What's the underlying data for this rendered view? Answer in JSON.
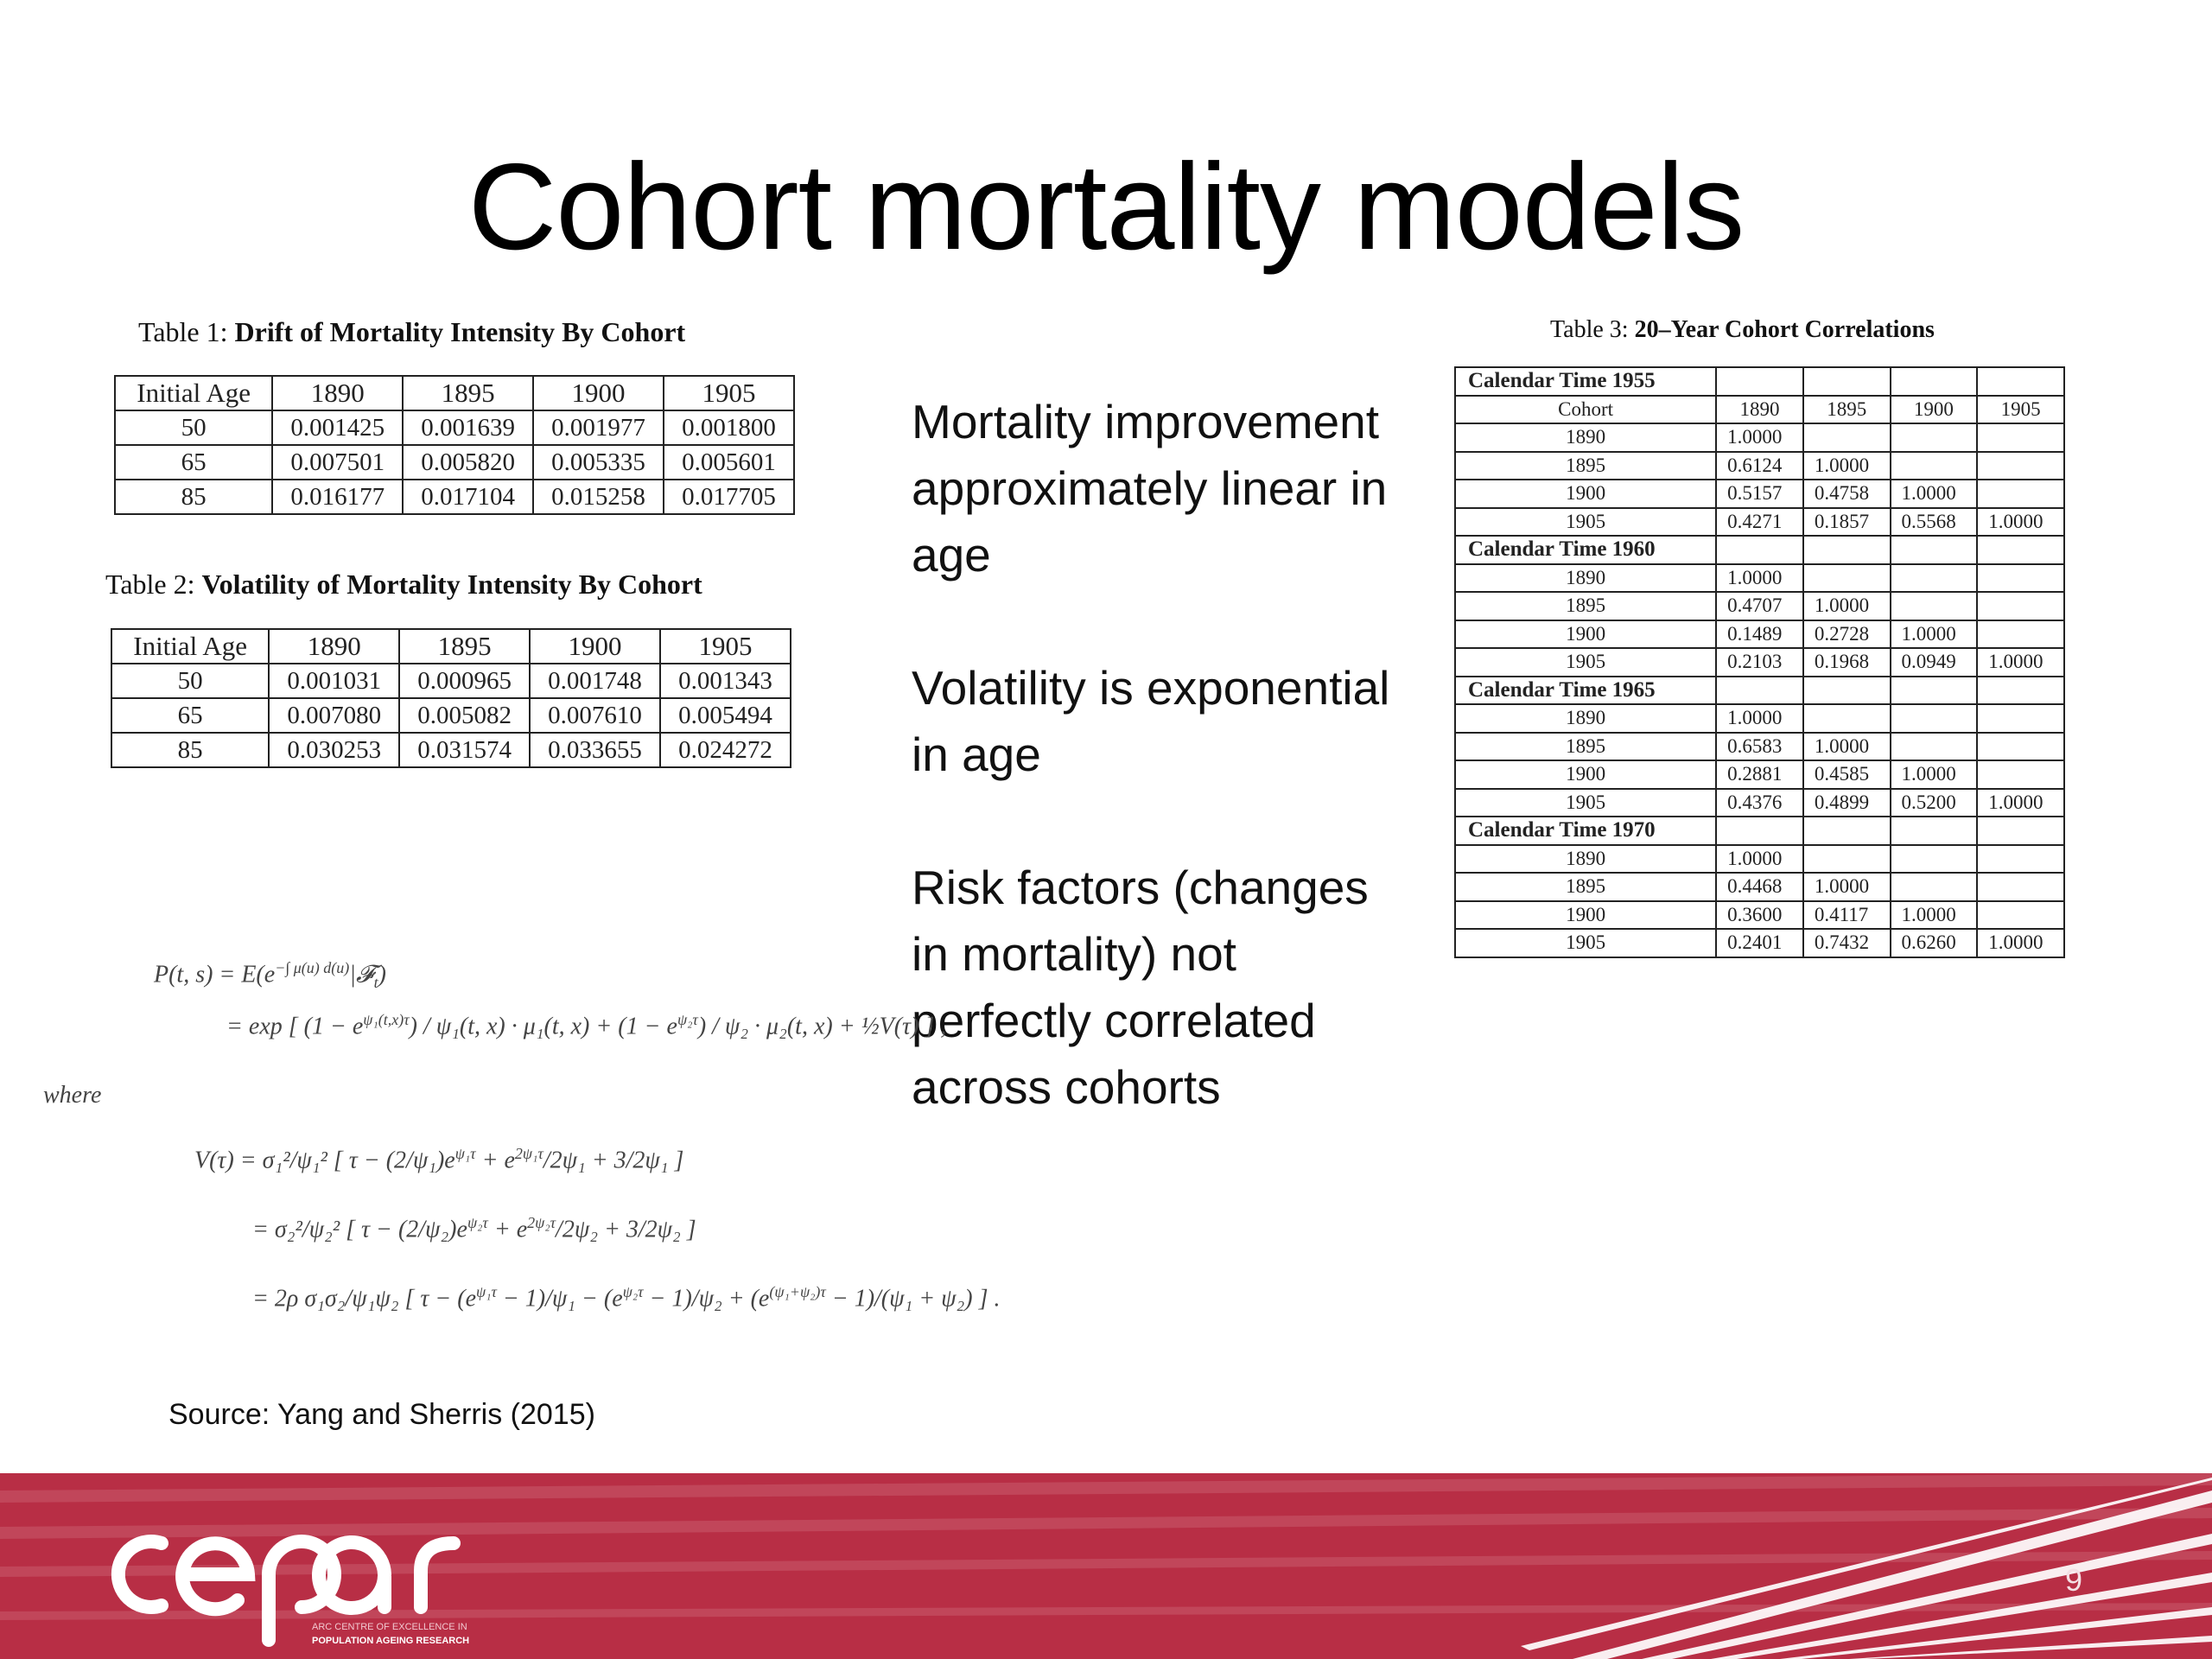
{
  "title": "Cohort mortality models",
  "table1": {
    "label": "Table 1:",
    "caption": "Drift of Mortality Intensity By Cohort",
    "header": [
      "Initial Age",
      "1890",
      "1895",
      "1900",
      "1905"
    ],
    "rows": [
      [
        "50",
        "0.001425",
        "0.001639",
        "0.001977",
        "0.001800"
      ],
      [
        "65",
        "0.007501",
        "0.005820",
        "0.005335",
        "0.005601"
      ],
      [
        "85",
        "0.016177",
        "0.017104",
        "0.015258",
        "0.017705"
      ]
    ]
  },
  "table2": {
    "label": "Table 2:",
    "caption": "Volatility of Mortality Intensity By Cohort",
    "header": [
      "Initial Age",
      "1890",
      "1895",
      "1900",
      "1905"
    ],
    "rows": [
      [
        "50",
        "0.001031",
        "0.000965",
        "0.001748",
        "0.001343"
      ],
      [
        "65",
        "0.007080",
        "0.005082",
        "0.007610",
        "0.005494"
      ],
      [
        "85",
        "0.030253",
        "0.031574",
        "0.033655",
        "0.024272"
      ]
    ]
  },
  "table3": {
    "label": "Table 3:",
    "caption": "20–Year Cohort Correlations",
    "header": [
      "Cohort",
      "1890",
      "1895",
      "1900",
      "1905"
    ],
    "blocks": [
      {
        "title": "Calendar Time 1955",
        "rows": [
          [
            "1890",
            "1.0000",
            "",
            "",
            ""
          ],
          [
            "1895",
            "0.6124",
            "1.0000",
            "",
            ""
          ],
          [
            "1900",
            "0.5157",
            "0.4758",
            "1.0000",
            ""
          ],
          [
            "1905",
            "0.4271",
            "0.1857",
            "0.5568",
            "1.0000"
          ]
        ]
      },
      {
        "title": "Calendar Time 1960",
        "rows": [
          [
            "1890",
            "1.0000",
            "",
            "",
            ""
          ],
          [
            "1895",
            "0.4707",
            "1.0000",
            "",
            ""
          ],
          [
            "1900",
            "0.1489",
            "0.2728",
            "1.0000",
            ""
          ],
          [
            "1905",
            "0.2103",
            "0.1968",
            "0.0949",
            "1.0000"
          ]
        ]
      },
      {
        "title": "Calendar Time 1965",
        "rows": [
          [
            "1890",
            "1.0000",
            "",
            "",
            ""
          ],
          [
            "1895",
            "0.6583",
            "1.0000",
            "",
            ""
          ],
          [
            "1900",
            "0.2881",
            "0.4585",
            "1.0000",
            ""
          ],
          [
            "1905",
            "0.4376",
            "0.4899",
            "0.5200",
            "1.0000"
          ]
        ]
      },
      {
        "title": "Calendar Time 1970",
        "rows": [
          [
            "1890",
            "1.0000",
            "",
            "",
            ""
          ],
          [
            "1895",
            "0.4468",
            "1.0000",
            "",
            ""
          ],
          [
            "1900",
            "0.3600",
            "0.4117",
            "1.0000",
            ""
          ],
          [
            "1905",
            "0.2401",
            "0.7432",
            "0.6260",
            "1.0000"
          ]
        ]
      }
    ]
  },
  "bullets": [
    "Mortality improvement approximately linear in age",
    "Volatility is exponential in age",
    "Risk factors (changes in mortality) not perfectly correlated across cohorts"
  ],
  "math": {
    "where": "where"
  },
  "source": "Source: Yang and Sherris (2015)",
  "logo_text": "cepar",
  "logo_subtitle_1": "ARC CENTRE OF EXCELLENCE IN",
  "logo_subtitle_2": "POPULATION AGEING RESEARCH",
  "page_number": "9",
  "colors": {
    "footer": "#b82e45"
  }
}
